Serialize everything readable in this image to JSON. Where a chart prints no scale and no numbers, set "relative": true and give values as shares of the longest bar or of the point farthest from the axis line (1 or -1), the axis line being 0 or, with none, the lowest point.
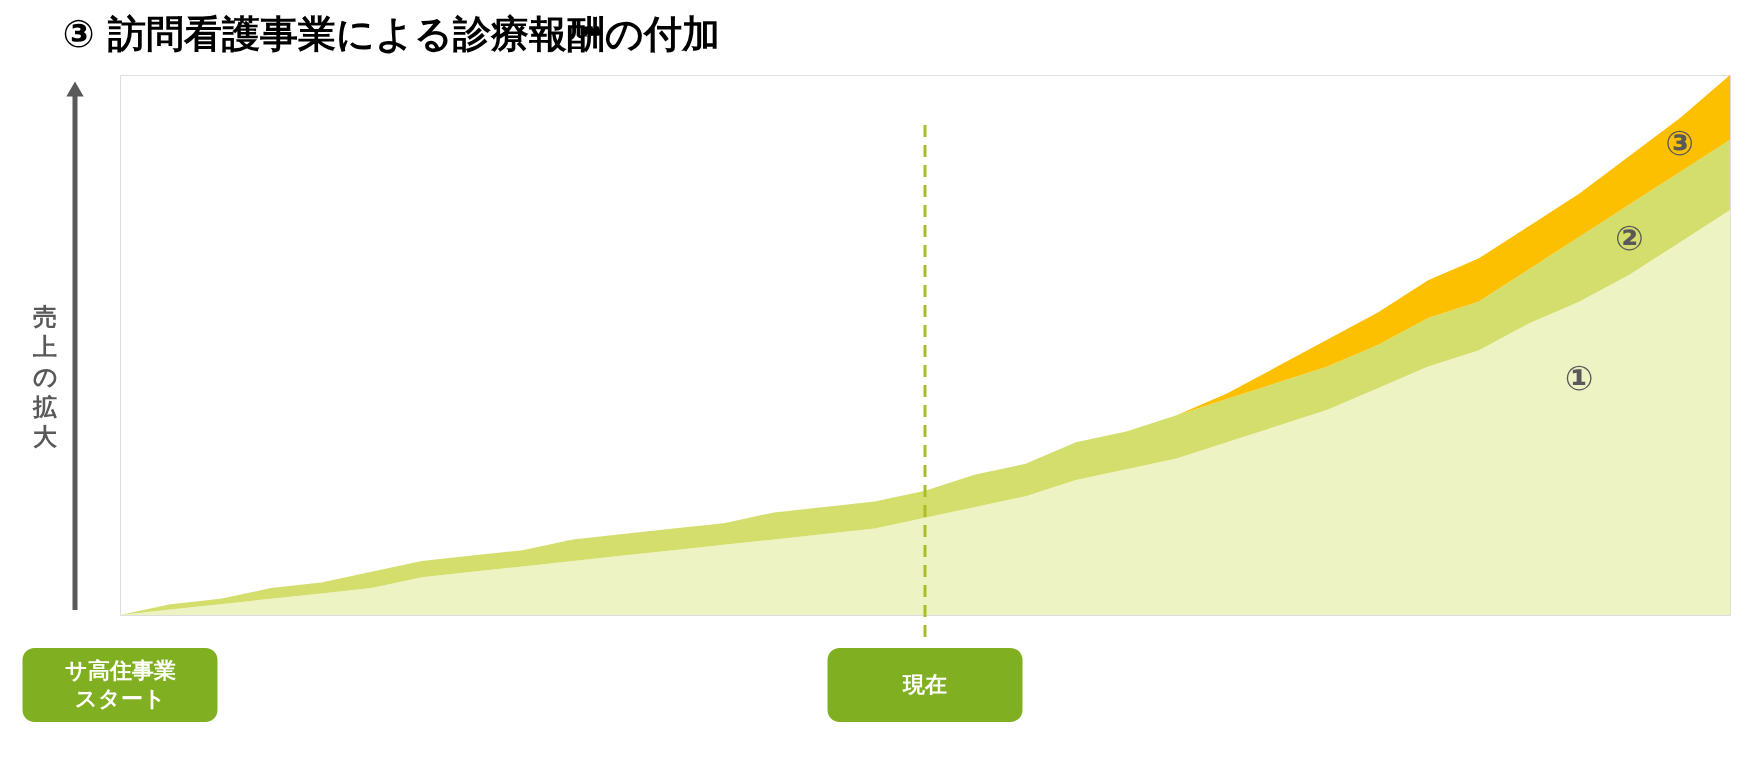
{
  "chart_data": {
    "type": "area",
    "title": "③ 訪問看護事業による診療報酬の付加",
    "ylabel": "売上の拡大",
    "relative": true,
    "stacked": true,
    "categories": [
      "サ高住事業スタート",
      null,
      null,
      null,
      null,
      null,
      null,
      null,
      null,
      null,
      null,
      null,
      null,
      null,
      null,
      null,
      "現在",
      null,
      null,
      null,
      null,
      null,
      null,
      null,
      null,
      null,
      null,
      null,
      null,
      null,
      null,
      null,
      null
    ],
    "series": [
      {
        "name": "①",
        "color": "#eef3c4",
        "values": [
          0,
          0.01,
          0.02,
          0.03,
          0.04,
          0.05,
          0.07,
          0.08,
          0.09,
          0.1,
          0.11,
          0.12,
          0.13,
          0.14,
          0.15,
          0.16,
          0.18,
          0.2,
          0.22,
          0.25,
          0.27,
          0.29,
          0.32,
          0.35,
          0.38,
          0.42,
          0.46,
          0.49,
          0.54,
          0.58,
          0.63,
          0.69,
          0.75
        ]
      },
      {
        "name": "②",
        "color": "#d4de6c",
        "values": [
          0,
          0.01,
          0.01,
          0.02,
          0.02,
          0.03,
          0.03,
          0.03,
          0.03,
          0.04,
          0.04,
          0.04,
          0.04,
          0.05,
          0.05,
          0.05,
          0.05,
          0.06,
          0.06,
          0.07,
          0.07,
          0.08,
          0.08,
          0.08,
          0.08,
          0.08,
          0.09,
          0.09,
          0.1,
          0.12,
          0.13,
          0.13,
          0.13
        ]
      },
      {
        "name": "③",
        "color": "#fcc000",
        "values": [
          0,
          0,
          0,
          0,
          0,
          0,
          0,
          0,
          0,
          0,
          0,
          0,
          0,
          0,
          0,
          0,
          0,
          0,
          0,
          0,
          0,
          0,
          0.01,
          0.03,
          0.05,
          0.06,
          0.07,
          0.08,
          0.08,
          0.08,
          0.09,
          0.1,
          0.12
        ]
      }
    ],
    "ref_lines": [
      {
        "axis": "x",
        "value": "現在",
        "color": "#a9bd2a",
        "line_style": "dashed"
      }
    ]
  }
}
